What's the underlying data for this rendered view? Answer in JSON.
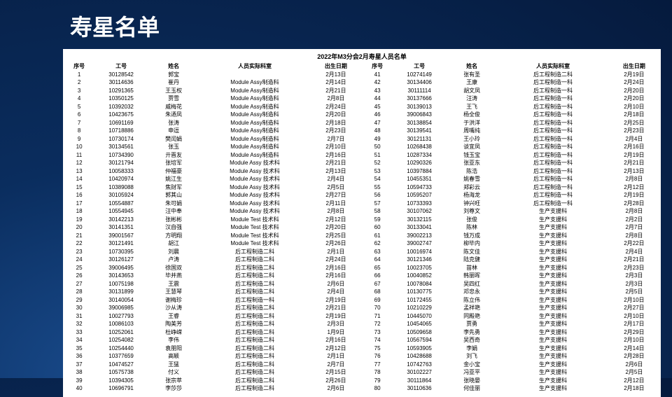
{
  "page_title": "寿星名单",
  "table_title": "2022年M3分会2月寿星人员名单",
  "columns": [
    "序号",
    "工号",
    "姓名",
    "人员实际科室",
    "出生日期"
  ],
  "left_rows": [
    [
      "1",
      "30128542",
      "郭宝",
      "",
      "2月13日"
    ],
    [
      "2",
      "30114636",
      "崔丹",
      "Module Assy制造科",
      "2月14日"
    ],
    [
      "3",
      "10291365",
      "王玉权",
      "Module Assy制造科",
      "2月21日"
    ],
    [
      "4",
      "10350125",
      "贾雪",
      "Module Assy制造科",
      "2月8日"
    ],
    [
      "5",
      "10392032",
      "威梅花",
      "Module Assy制造科",
      "2月24日"
    ],
    [
      "6",
      "10423675",
      "朱迺凤",
      "Module Assy制造科",
      "2月20日"
    ],
    [
      "7",
      "10691169",
      "张涛",
      "Module Assy制造科",
      "2月18日"
    ],
    [
      "8",
      "10718886",
      "申逗",
      "Module Assy制造科",
      "2月23日"
    ],
    [
      "9",
      "10730174",
      "樊闰娟",
      "Module Assy制造科",
      "2月7日"
    ],
    [
      "10",
      "30134561",
      "张玉",
      "Module Assy制造科",
      "2月10日"
    ],
    [
      "11",
      "10734390",
      "亓晋友",
      "Module Assy制造科",
      "2月16日"
    ],
    [
      "12",
      "30121794",
      "张培军",
      "Module Assy 技术科",
      "2月21日"
    ],
    [
      "13",
      "10058333",
      "仲福豪",
      "Module Assy 技术科",
      "2月13日"
    ],
    [
      "14",
      "10420974",
      "姚江生",
      "Module Assy 技术科",
      "2月4日"
    ],
    [
      "15",
      "10389088",
      "焦财军",
      "Module Assy 技术科",
      "2月5日"
    ],
    [
      "16",
      "30105924",
      "郭其山",
      "Module Assy 技术科",
      "2月27日"
    ],
    [
      "17",
      "10554887",
      "朱可娟",
      "Module Assy 技术科",
      "2月11日"
    ],
    [
      "18",
      "10554945",
      "汪中奉",
      "Module Assy 技术科",
      "2月8日"
    ],
    [
      "19",
      "30142213",
      "张彬彬",
      "Module Test 技术科",
      "2月12日"
    ],
    [
      "20",
      "30141351",
      "汉自强",
      "Module Test 技术科",
      "2月20日"
    ],
    [
      "21",
      "39001567",
      "方明翔",
      "Module Test 技术科",
      "2月25日"
    ],
    [
      "22",
      "30121491",
      "胡江",
      "Module Test 技术科",
      "2月26日"
    ],
    [
      "23",
      "10730395",
      "刘晨",
      "后工程制造二科",
      "2月1日"
    ],
    [
      "24",
      "30126127",
      "卢涛",
      "后工程制造二科",
      "2月24日"
    ],
    [
      "25",
      "39006495",
      "徐国双",
      "后工程制造二科",
      "2月16日"
    ],
    [
      "26",
      "30143653",
      "毕并燕",
      "后工程制造二科",
      "2月16日"
    ],
    [
      "27",
      "10075198",
      "王震",
      "后工程制造二科",
      "2月6日"
    ],
    [
      "28",
      "30131899",
      "王慧琴",
      "后工程制造二科",
      "2月4日"
    ],
    [
      "29",
      "30140054",
      "谢梅珍",
      "后工程制造一科",
      "2月19日"
    ],
    [
      "30",
      "39006985",
      "沙从涛",
      "后工程制造二科",
      "2月21日"
    ],
    [
      "31",
      "10027793",
      "王睿",
      "后工程制造二科",
      "2月19日"
    ],
    [
      "32",
      "10086103",
      "陶美芳",
      "后工程制造二科",
      "2月3日"
    ],
    [
      "33",
      "10252061",
      "杜峥嵘",
      "后工程制造二科",
      "1月9日"
    ],
    [
      "34",
      "10254082",
      "李伟",
      "后工程制造二科",
      "2月16日"
    ],
    [
      "35",
      "10254440",
      "袁朋阳",
      "后工程制造二科",
      "2月12日"
    ],
    [
      "36",
      "10377659",
      "高颖",
      "后工程制造二科",
      "2月1日"
    ],
    [
      "37",
      "10474527",
      "王猛",
      "后工程制造二科",
      "2月7日"
    ],
    [
      "38",
      "10575738",
      "付义",
      "后工程制造二科",
      "2月15日"
    ],
    [
      "39",
      "10394305",
      "张宗萃",
      "后工程制造二科",
      "2月26日"
    ],
    [
      "40",
      "10696791",
      "李莎莎",
      "后工程制造二科",
      "2月6日"
    ]
  ],
  "right_rows": [
    [
      "41",
      "10274149",
      "张有圣",
      "后工程制造二科",
      "2月19日"
    ],
    [
      "42",
      "30134406",
      "王康",
      "后工程制造一科",
      "2月24日"
    ],
    [
      "43",
      "30111114",
      "胡文凤",
      "后工程制造一科",
      "2月20日"
    ],
    [
      "44",
      "30137666",
      "汪涛",
      "后工程制造一科",
      "2月20日"
    ],
    [
      "45",
      "30139013",
      "王飞",
      "后工程制造一科",
      "2月10日"
    ],
    [
      "46",
      "39006843",
      "杨全俊",
      "后工程制造一科",
      "2月18日"
    ],
    [
      "47",
      "30138854",
      "于洪洋",
      "后工程制造一科",
      "2月25日"
    ],
    [
      "48",
      "30139541",
      "周嘴纯",
      "后工程制造一科",
      "2月23日"
    ],
    [
      "49",
      "30121131",
      "王小玲",
      "后工程制造一科",
      "2月4日"
    ],
    [
      "50",
      "10268438",
      "谈宜凤",
      "后工程制造一科",
      "2月16日"
    ],
    [
      "51",
      "10287334",
      "钱玉宝",
      "后工程制造一科",
      "2月19日"
    ],
    [
      "52",
      "10290326",
      "张亚东",
      "后工程制造一科",
      "2月21日"
    ],
    [
      "53",
      "10397884",
      "陈浩",
      "后工程制造一科",
      "2月13日"
    ],
    [
      "54",
      "10455351",
      "姚春雪",
      "后工程制造一科",
      "2月8日"
    ],
    [
      "55",
      "10594733",
      "郑彩云",
      "后工程制造一科",
      "2月12日"
    ],
    [
      "56",
      "10595207",
      "杨海龙",
      "后工程制造一科",
      "2月19日"
    ],
    [
      "57",
      "10733393",
      "钟兴旺",
      "后工程制造一科",
      "2月28日"
    ],
    [
      "58",
      "30107062",
      "刘尊文",
      "生产支援科",
      "2月8日"
    ],
    [
      "59",
      "30132115",
      "张俊",
      "生产支援科",
      "2月2日"
    ],
    [
      "60",
      "30133041",
      "陈林",
      "生产支援科",
      "2月7日"
    ],
    [
      "61",
      "39002213",
      "钱万成",
      "生产支援科",
      "2月8日"
    ],
    [
      "62",
      "39002747",
      "柳毕内",
      "生产支援科",
      "2月22日"
    ],
    [
      "63",
      "10016974",
      "陈文佳",
      "生产支援科",
      "2月4日"
    ],
    [
      "64",
      "30121346",
      "陆克健",
      "生产支援科",
      "2月21日"
    ],
    [
      "65",
      "10023705",
      "苗林",
      "生产支援科",
      "2月23日"
    ],
    [
      "66",
      "10040852",
      "韩丽晖",
      "生产支援科",
      "2月3日"
    ],
    [
      "67",
      "10078084",
      "吴四红",
      "生产支援科",
      "2月3日"
    ],
    [
      "68",
      "10130775",
      "邓忠永",
      "生产支援科",
      "2月5日"
    ],
    [
      "69",
      "10172455",
      "陈立伟",
      "生产支援科",
      "2月10日"
    ],
    [
      "70",
      "10210229",
      "孟祥艳",
      "生产支援科",
      "2月27日"
    ],
    [
      "71",
      "10445070",
      "同殿艳",
      "生产支援科",
      "2月10日"
    ],
    [
      "72",
      "10454065",
      "贾勇",
      "生产支援科",
      "2月17日"
    ],
    [
      "73",
      "10509658",
      "李先勇",
      "生产支援科",
      "2月29日"
    ],
    [
      "74",
      "10567594",
      "吴西奇",
      "生产支援科",
      "2月10日"
    ],
    [
      "75",
      "10593905",
      "李娟",
      "生产支援科",
      "2月14日"
    ],
    [
      "76",
      "10428688",
      "刘飞",
      "生产支援科",
      "2月28日"
    ],
    [
      "77",
      "10742763",
      "金小宝",
      "生产支援科",
      "2月6日"
    ],
    [
      "78",
      "30102227",
      "冯亚平",
      "生产支援科",
      "2月5日"
    ],
    [
      "79",
      "30111864",
      "张晓晏",
      "生产支援科",
      "2月12日"
    ],
    [
      "80",
      "30110636",
      "何佳丽",
      "生产支援科",
      "2月18日"
    ]
  ]
}
